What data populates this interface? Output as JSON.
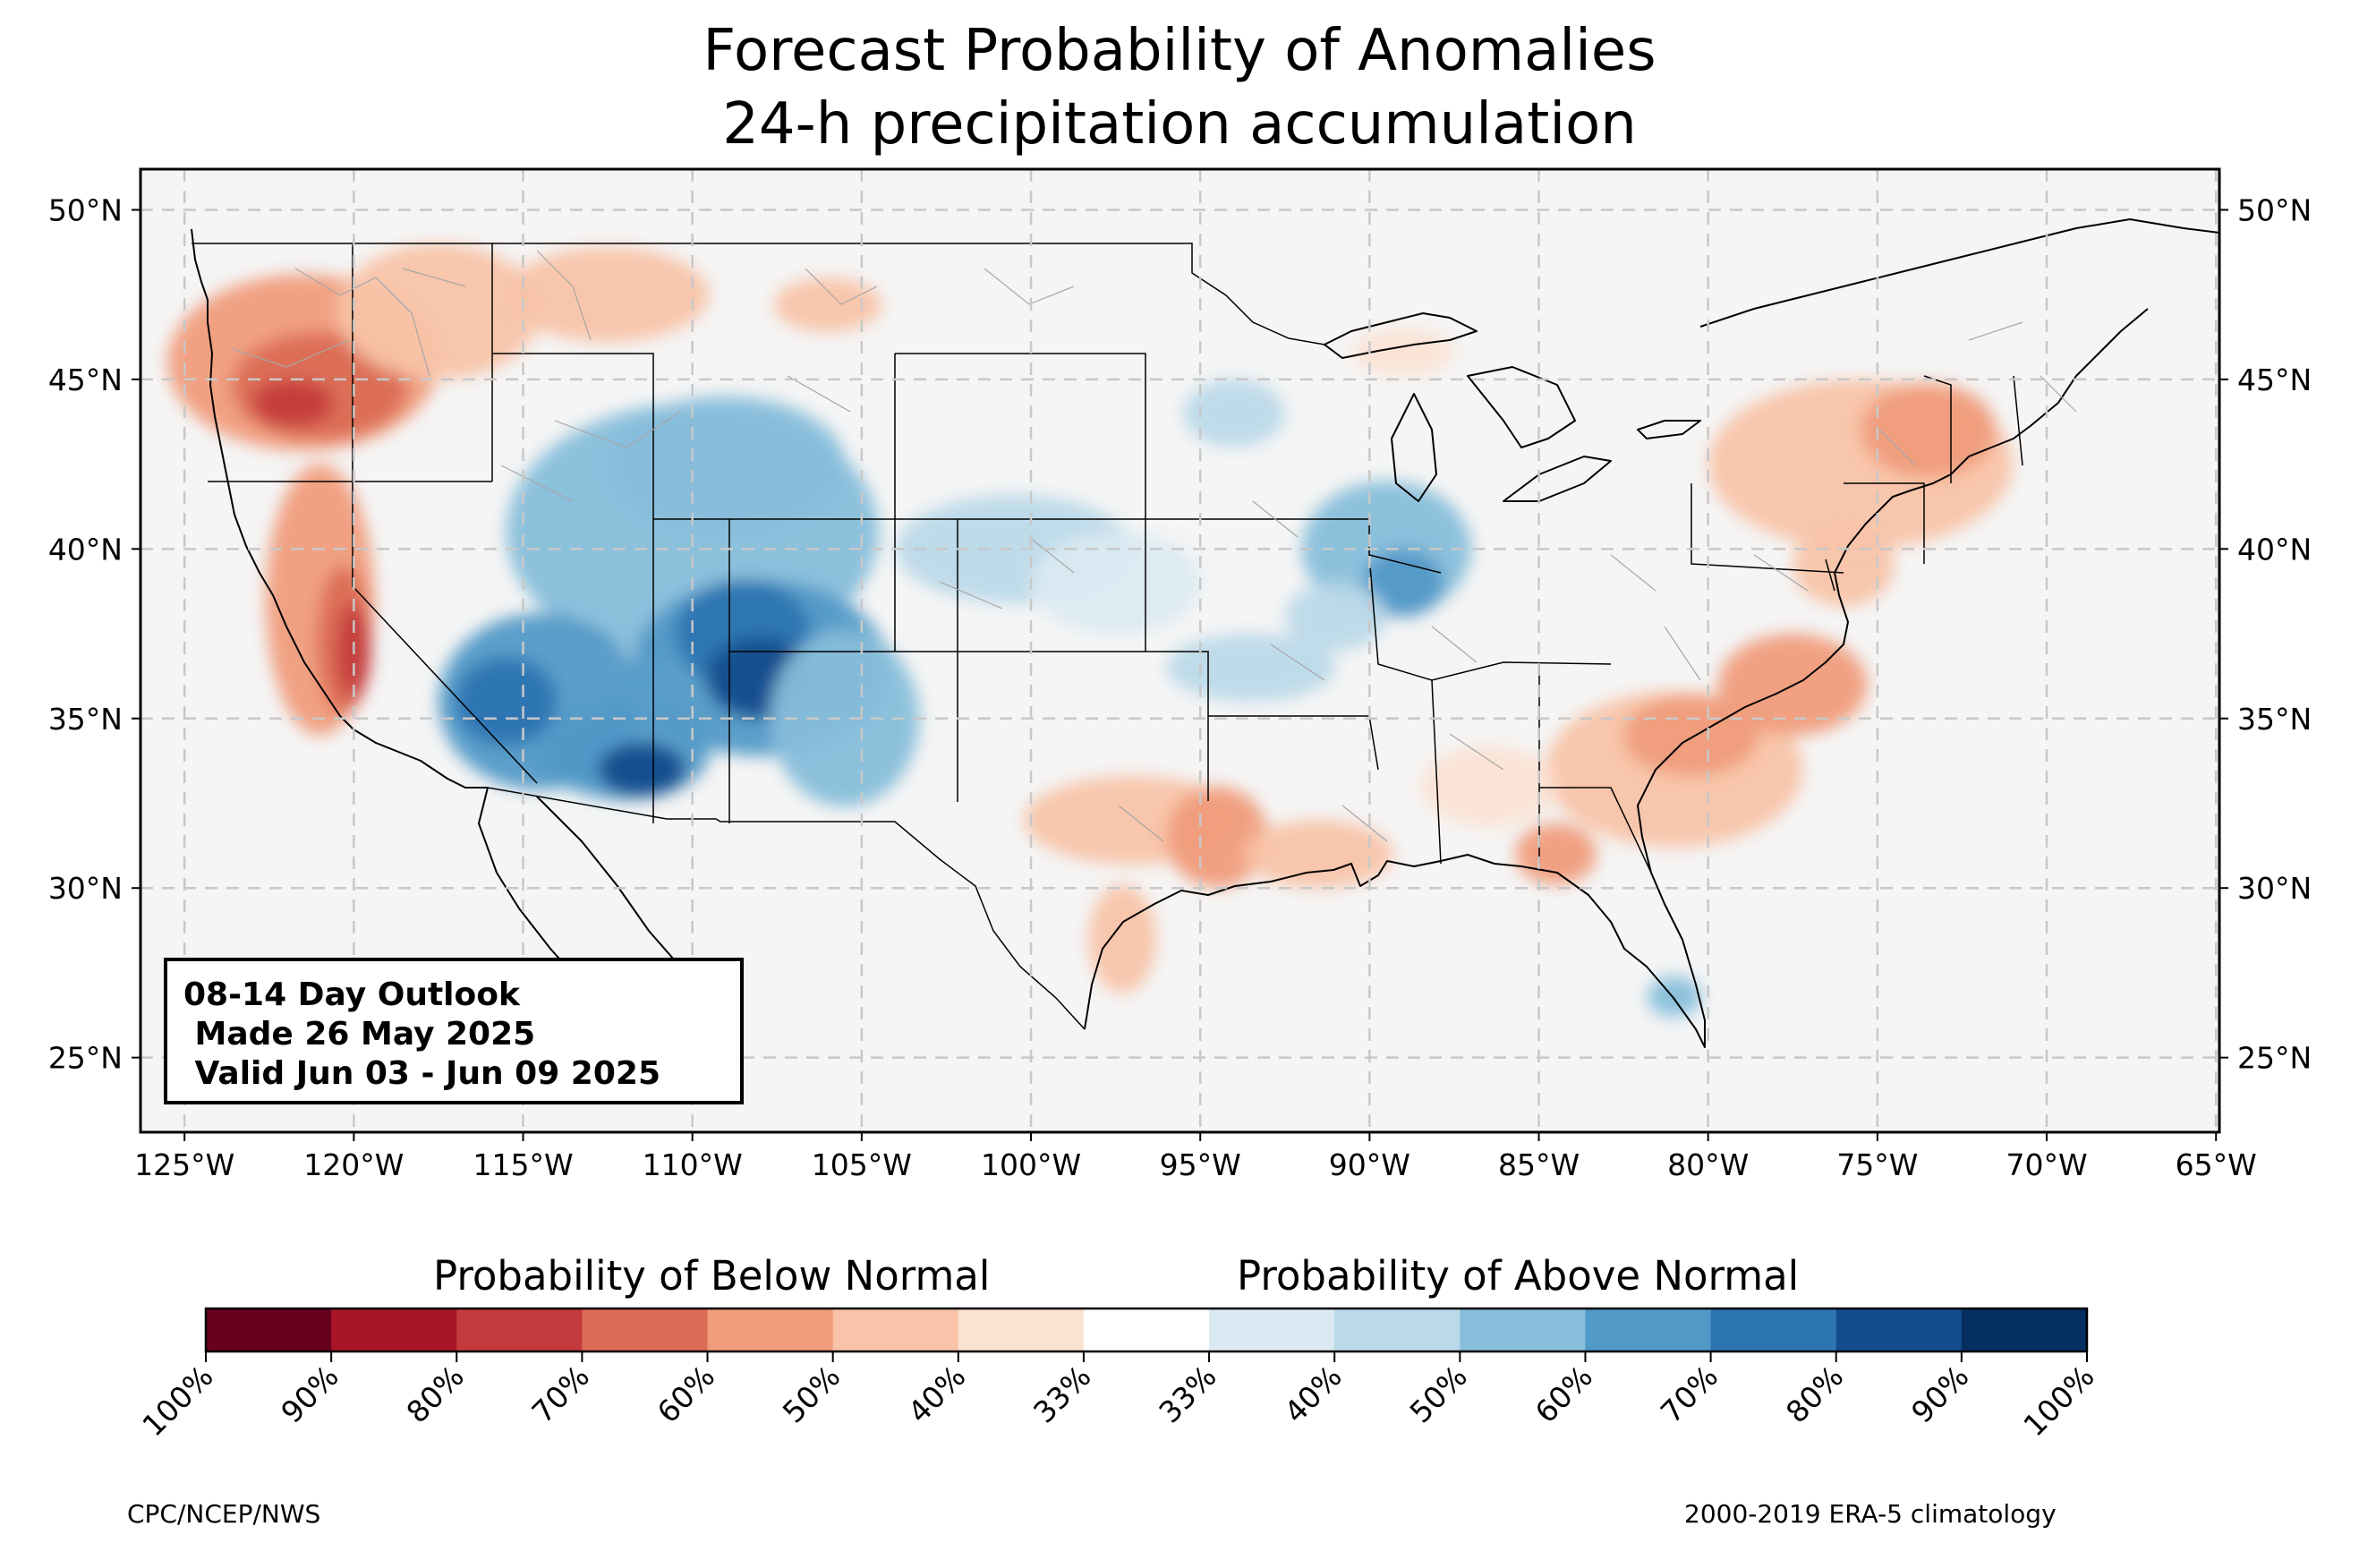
{
  "title": {
    "line1": "Forecast Probability of Anomalies",
    "line2": "24-h precipitation accumulation"
  },
  "map": {
    "lat_labels": [
      "50°N",
      "45°N",
      "40°N",
      "35°N",
      "30°N",
      "25°N"
    ],
    "lon_labels": [
      "125°W",
      "120°W",
      "115°W",
      "110°W",
      "105°W",
      "100°W",
      "95°W",
      "90°W",
      "85°W",
      "80°W",
      "75°W",
      "70°W",
      "65°W"
    ],
    "extent": {
      "lon": [
        -126.3,
        -64.9
      ],
      "lat": [
        22.8,
        51.2
      ]
    },
    "gridlines": "dashed",
    "below_regions": [
      {
        "region": "Pacific Northwest / Oregon",
        "max_level": "70%"
      },
      {
        "region": "California Central Valley",
        "max_level": "80%"
      },
      {
        "region": "Northern Rockies / Montana",
        "max_level": "50%"
      },
      {
        "region": "Texas / Louisiana",
        "max_level": "60%"
      },
      {
        "region": "Southeast / Carolinas",
        "max_level": "60%"
      },
      {
        "region": "Northeast / New England",
        "max_level": "60%"
      }
    ],
    "above_regions": [
      {
        "region": "Four Corners / Southwest",
        "max_level": "80%"
      },
      {
        "region": "Central Rockies / Wyoming",
        "max_level": "60%"
      },
      {
        "region": "Central Plains / Kansas",
        "max_level": "50%"
      },
      {
        "region": "Mississippi Valley",
        "max_level": "50%"
      },
      {
        "region": "South Florida",
        "max_level": "50%"
      }
    ]
  },
  "info_box": {
    "line1": "08-14 Day Outlook",
    "line2": " Made 26 May 2025",
    "line3": " Valid Jun 03 - Jun 09 2025"
  },
  "colorbar": {
    "below_label": "Probability of Below Normal",
    "above_label": "Probability of Above Normal",
    "colors": [
      "#67001f",
      "#a81529",
      "#c43a3c",
      "#dc6b55",
      "#f09c7b",
      "#f8c3a8",
      "#fbe3d4",
      "#ffffff",
      "#dbeaf2",
      "#bad9e9",
      "#87beda",
      "#5199c7",
      "#2d75b2",
      "#144d8e",
      "#053061"
    ],
    "ticks": [
      "100%",
      "90%",
      "80%",
      "70%",
      "60%",
      "50%",
      "40%",
      "33%",
      "33%",
      "40%",
      "50%",
      "60%",
      "70%",
      "80%",
      "90%",
      "100%"
    ]
  },
  "footer": {
    "left": "CPC/NCEP/NWS",
    "right": "2000-2019 ERA-5 climatology"
  }
}
